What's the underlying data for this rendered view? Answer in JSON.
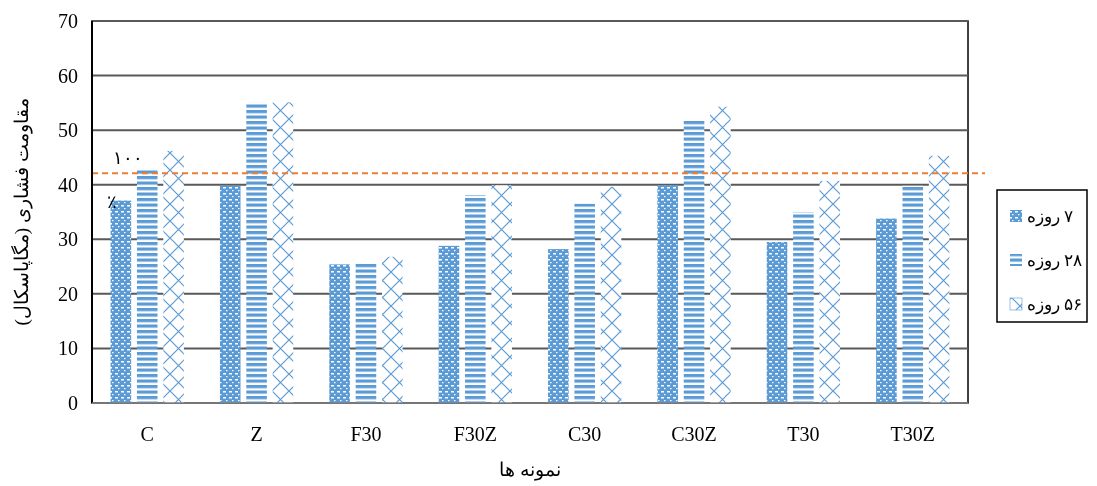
{
  "chart_data": {
    "type": "bar",
    "categories": [
      "C",
      "Z",
      "F30",
      "F30Z",
      "C30",
      "C30Z",
      "T30",
      "T30Z"
    ],
    "series": [
      {
        "name": "۷ روزه",
        "color": "#5b9bd5",
        "values": [
          37.1,
          39.8,
          25.4,
          28.8,
          28.2,
          39.9,
          29.5,
          33.8
        ]
      },
      {
        "name": "۲۸ روزه",
        "color": "#5b9bd5",
        "values": [
          42.9,
          55.0,
          25.7,
          38.1,
          36.5,
          51.7,
          35.0,
          39.8
        ]
      },
      {
        "name": "۵۶ روزه",
        "color": "#5b9bd5",
        "values": [
          46.2,
          55.1,
          26.8,
          39.9,
          39.6,
          54.3,
          40.7,
          45.3
        ]
      }
    ],
    "xlabel": "نمونه ها",
    "ylabel": "مقاومت فشاری (مگاپاسکال)",
    "ylim": [
      0,
      70
    ],
    "yticks": [
      0,
      10,
      20,
      30,
      40,
      50,
      60,
      70
    ],
    "grid": "y",
    "legend": "right",
    "ref_lines": [
      {
        "axis": "y",
        "value": 42.1,
        "label": "۱۰۰ ٪",
        "color": "#ed7d31",
        "line_style": "dashed"
      }
    ]
  }
}
